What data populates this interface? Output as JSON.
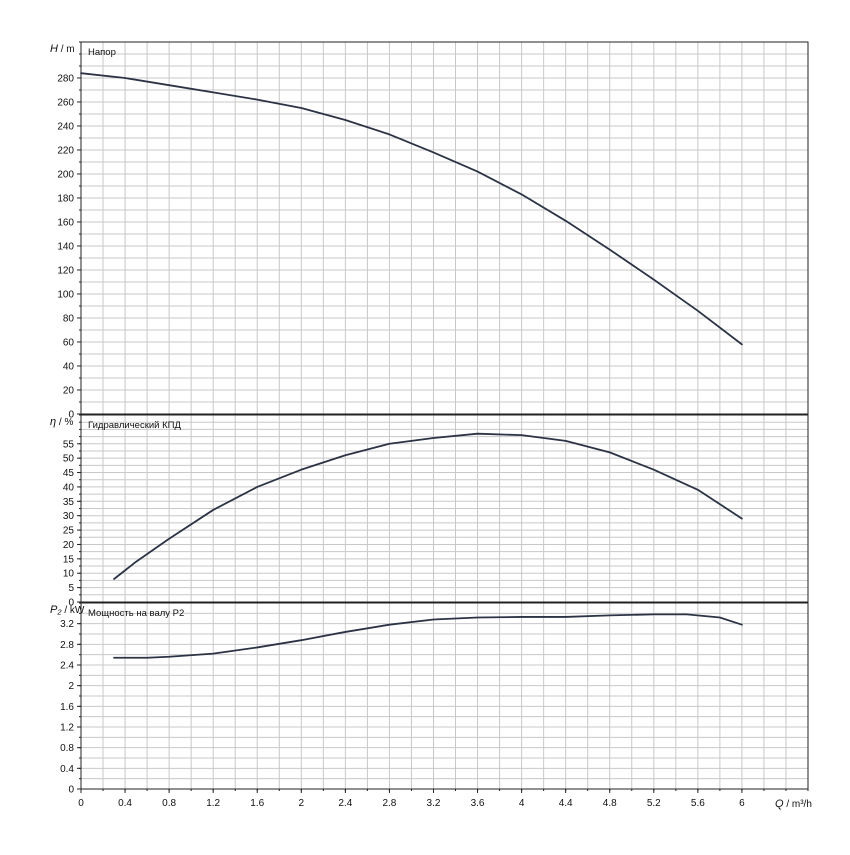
{
  "chart_data": [
    {
      "type": "line",
      "title": "Напор",
      "ylabel_symbol": "H",
      "ylabel_unit": "m",
      "xlim": [
        0,
        6.6
      ],
      "ylim": [
        0,
        310
      ],
      "y_ticks": [
        0,
        20,
        40,
        60,
        80,
        100,
        120,
        140,
        160,
        180,
        200,
        220,
        240,
        260,
        280
      ],
      "grid": true,
      "series": [
        {
          "x": [
            0,
            0.4,
            0.8,
            1.2,
            1.6,
            2.0,
            2.4,
            2.8,
            3.2,
            3.6,
            4.0,
            4.4,
            4.8,
            5.2,
            5.6,
            6.0
          ],
          "y": [
            284,
            280,
            274,
            268,
            262,
            255,
            245,
            233,
            218,
            202,
            183,
            161,
            137,
            112,
            86,
            58
          ]
        }
      ]
    },
    {
      "type": "line",
      "title": "Гидравлический КПД",
      "ylabel_symbol": "η",
      "ylabel_unit": "%",
      "xlim": [
        0,
        6.6
      ],
      "ylim": [
        0,
        65
      ],
      "y_ticks": [
        0,
        5,
        10,
        15,
        20,
        25,
        30,
        35,
        40,
        45,
        50,
        55
      ],
      "grid": true,
      "series": [
        {
          "x": [
            0.3,
            0.5,
            0.8,
            1.2,
            1.6,
            2.0,
            2.4,
            2.8,
            3.2,
            3.6,
            4.0,
            4.4,
            4.8,
            5.2,
            5.6,
            6.0
          ],
          "y": [
            8,
            14,
            22,
            32,
            40,
            46,
            51,
            55,
            57,
            58.5,
            58,
            56,
            52,
            46,
            39,
            29
          ]
        }
      ]
    },
    {
      "type": "line",
      "title": "Мощность на валу P2",
      "ylabel_symbol": "P₂",
      "ylabel_unit": "kW",
      "xlabel_symbol": "Q",
      "xlabel_unit": "m³/h",
      "xlim": [
        0,
        6.6
      ],
      "ylim": [
        0,
        3.6
      ],
      "x_ticks": [
        0,
        0.4,
        0.8,
        1.2,
        1.6,
        2,
        2.4,
        2.8,
        3.2,
        3.6,
        4,
        4.4,
        4.8,
        5.2,
        5.6,
        6
      ],
      "x_tick_labels": [
        "0",
        "0.4",
        "0.8",
        "1.2",
        "1.6",
        "2",
        "2.4",
        "2.8",
        "3.2",
        "3.6",
        "4",
        "4.4",
        "4.8",
        "5.2",
        "5.6",
        "6"
      ],
      "y_ticks": [
        0,
        0.4,
        0.8,
        1.2,
        1.6,
        2,
        2.4,
        2.8,
        3.2
      ],
      "y_tick_labels": [
        "0",
        "0.4",
        "0.8",
        "1.2",
        "1.6",
        "2",
        "2.4",
        "2.8",
        "3.2"
      ],
      "grid": true,
      "series": [
        {
          "x": [
            0.3,
            0.6,
            0.8,
            1.2,
            1.6,
            2.0,
            2.4,
            2.8,
            3.2,
            3.6,
            4.0,
            4.4,
            4.8,
            5.2,
            5.5,
            5.8,
            6.0
          ],
          "y": [
            2.54,
            2.54,
            2.56,
            2.62,
            2.74,
            2.88,
            3.04,
            3.18,
            3.28,
            3.32,
            3.33,
            3.33,
            3.36,
            3.38,
            3.38,
            3.32,
            3.18
          ]
        }
      ]
    }
  ]
}
